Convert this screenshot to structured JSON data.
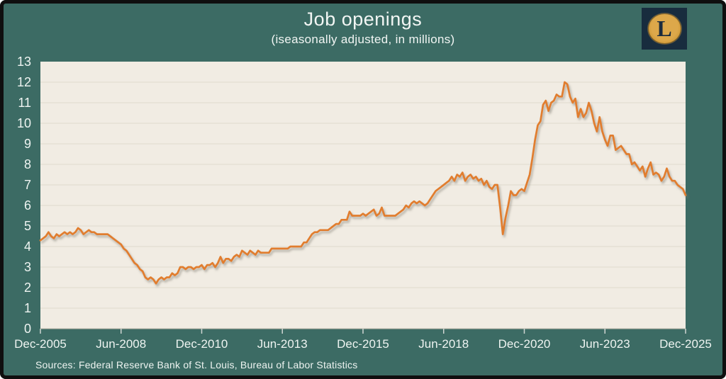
{
  "header": {
    "title": "Job openings",
    "subtitle": "(iseasonally adjusted, in millions)"
  },
  "logo": {
    "letter": "L"
  },
  "footer": {
    "sources": "Sources: Federal Reserve Bank of St. Louis, Bureau of Labor Statistics"
  },
  "colors": {
    "background": "#3c6b64",
    "frame_border": "#0f0f0f",
    "plot_background": "#f1ece3",
    "gridline": "#e3ddd2",
    "axis_line": "#bcb6a9",
    "tick_mark": "#cfd6d2",
    "line": "#e17d2d",
    "line_shadow": "#7a756b",
    "label_text": "#eef4f1",
    "logo_background": "#182c3e",
    "logo_gold": "#d9a13f",
    "logo_letter": "#1b2b3d"
  },
  "chart_data": {
    "type": "line",
    "title": "Job openings",
    "subtitle": "(iseasonally adjusted, in millions)",
    "frequency": "monthly",
    "x_start": "Dec-2005",
    "x_end": "Dec-2025",
    "x_tick_labels": [
      "Dec-2005",
      "Jun-2008",
      "Dec-2010",
      "Jun-2013",
      "Dec-2015",
      "Jun-2018",
      "Dec-2020",
      "Jun-2023",
      "Dec-2025"
    ],
    "x_tick_month_interval": 30,
    "ylim": [
      0,
      13
    ],
    "y_tick_step": 1,
    "y_tick_labels": [
      "0",
      "1",
      "2",
      "3",
      "4",
      "5",
      "6",
      "7",
      "8",
      "9",
      "10",
      "11",
      "12",
      "13"
    ],
    "grid": "horizontal",
    "legend": "none",
    "series": [
      {
        "name": "Job openings (seasonally adjusted, in millions)",
        "values": [
          4.3,
          4.4,
          4.5,
          4.7,
          4.5,
          4.4,
          4.6,
          4.5,
          4.6,
          4.7,
          4.6,
          4.7,
          4.6,
          4.7,
          4.9,
          4.8,
          4.6,
          4.7,
          4.8,
          4.7,
          4.7,
          4.6,
          4.6,
          4.6,
          4.6,
          4.6,
          4.5,
          4.4,
          4.3,
          4.2,
          4.1,
          3.9,
          3.8,
          3.6,
          3.4,
          3.2,
          3.1,
          2.9,
          2.8,
          2.5,
          2.4,
          2.5,
          2.4,
          2.2,
          2.4,
          2.5,
          2.4,
          2.5,
          2.5,
          2.7,
          2.6,
          2.7,
          3.0,
          3.0,
          2.9,
          3.0,
          3.0,
          2.9,
          3.0,
          3.0,
          3.1,
          2.9,
          3.1,
          3.1,
          3.2,
          3.0,
          3.2,
          3.5,
          3.2,
          3.4,
          3.4,
          3.3,
          3.5,
          3.6,
          3.5,
          3.8,
          3.7,
          3.6,
          3.8,
          3.7,
          3.6,
          3.8,
          3.7,
          3.7,
          3.7,
          3.7,
          3.9,
          3.9,
          3.9,
          3.9,
          3.9,
          3.9,
          3.9,
          4.0,
          4.0,
          4.0,
          4.0,
          4.0,
          4.2,
          4.2,
          4.4,
          4.6,
          4.7,
          4.7,
          4.8,
          4.8,
          4.8,
          4.8,
          4.9,
          5.0,
          5.1,
          5.1,
          5.3,
          5.3,
          5.3,
          5.7,
          5.5,
          5.5,
          5.5,
          5.5,
          5.6,
          5.5,
          5.6,
          5.7,
          5.8,
          5.5,
          5.6,
          5.9,
          5.5,
          5.5,
          5.5,
          5.5,
          5.5,
          5.6,
          5.7,
          5.8,
          6.0,
          5.9,
          6.1,
          6.2,
          6.1,
          6.2,
          6.1,
          6.0,
          6.1,
          6.3,
          6.5,
          6.7,
          6.8,
          6.9,
          7.0,
          7.1,
          7.2,
          7.4,
          7.2,
          7.5,
          7.4,
          7.6,
          7.2,
          7.4,
          7.5,
          7.3,
          7.4,
          7.2,
          7.3,
          7.0,
          7.2,
          6.9,
          6.8,
          7.0,
          7.0,
          5.9,
          4.6,
          5.4,
          6.0,
          6.7,
          6.5,
          6.5,
          6.7,
          6.8,
          6.7,
          7.1,
          7.5,
          8.3,
          9.2,
          9.9,
          10.1,
          10.9,
          11.1,
          10.6,
          11.0,
          11.1,
          11.4,
          11.3,
          11.3,
          12.0,
          11.9,
          11.3,
          11.0,
          11.2,
          10.3,
          10.7,
          10.3,
          10.5,
          11.0,
          10.6,
          10.0,
          9.6,
          10.3,
          9.6,
          9.2,
          8.9,
          9.4,
          9.4,
          8.7,
          8.8,
          8.9,
          8.7,
          8.5,
          8.5,
          8.0,
          8.1,
          7.9,
          7.7,
          7.9,
          7.4,
          7.8,
          8.1,
          7.5,
          7.6,
          7.5,
          7.2,
          7.4,
          7.8,
          7.4,
          7.2,
          7.2,
          7.0,
          6.9,
          6.8,
          6.5
        ]
      }
    ]
  }
}
